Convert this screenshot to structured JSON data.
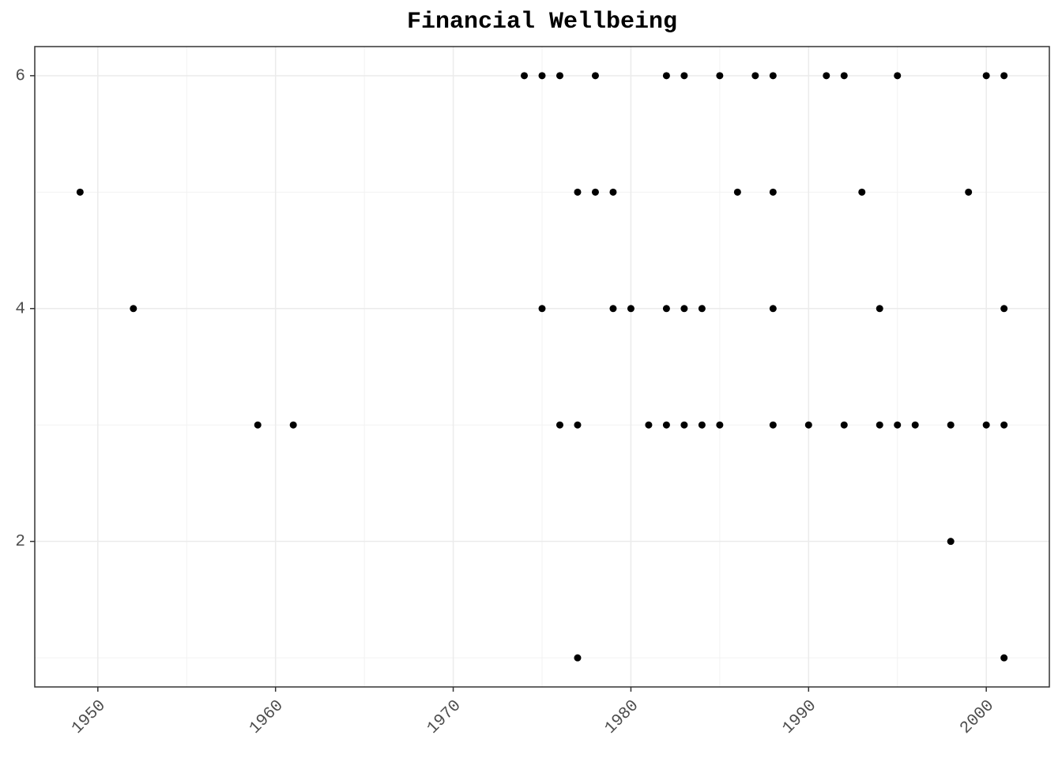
{
  "chart_data": {
    "type": "scatter",
    "title": "Financial Wellbeing",
    "x": [
      1974,
      1975,
      1976,
      1978,
      1982,
      1983,
      1985,
      1987,
      1988,
      1991,
      1992,
      1995,
      2000,
      2001,
      1949,
      1977,
      1978,
      1979,
      1986,
      1988,
      1993,
      1999,
      1952,
      1975,
      1979,
      1980,
      1982,
      1983,
      1984,
      1988,
      1994,
      2001,
      1959,
      1961,
      1976,
      1977,
      1981,
      1982,
      1983,
      1984,
      1985,
      1988,
      1990,
      1992,
      1994,
      1995,
      1996,
      1998,
      2000,
      2001,
      1998,
      1977,
      2001
    ],
    "y": [
      6,
      6,
      6,
      6,
      6,
      6,
      6,
      6,
      6,
      6,
      6,
      6,
      6,
      6,
      5,
      5,
      5,
      5,
      5,
      5,
      5,
      5,
      4,
      4,
      4,
      4,
      4,
      4,
      4,
      4,
      4,
      4,
      3,
      3,
      3,
      3,
      3,
      3,
      3,
      3,
      3,
      3,
      3,
      3,
      3,
      3,
      3,
      3,
      3,
      3,
      2,
      1,
      1
    ],
    "color": "#000000",
    "xlim": [
      1946.45,
      2003.55
    ],
    "xticks": [
      1950,
      1960,
      1970,
      1980,
      1990,
      2000
    ],
    "ylim": [
      0.75,
      6.25
    ],
    "yticks": [
      2,
      4,
      6
    ],
    "grid": true
  }
}
